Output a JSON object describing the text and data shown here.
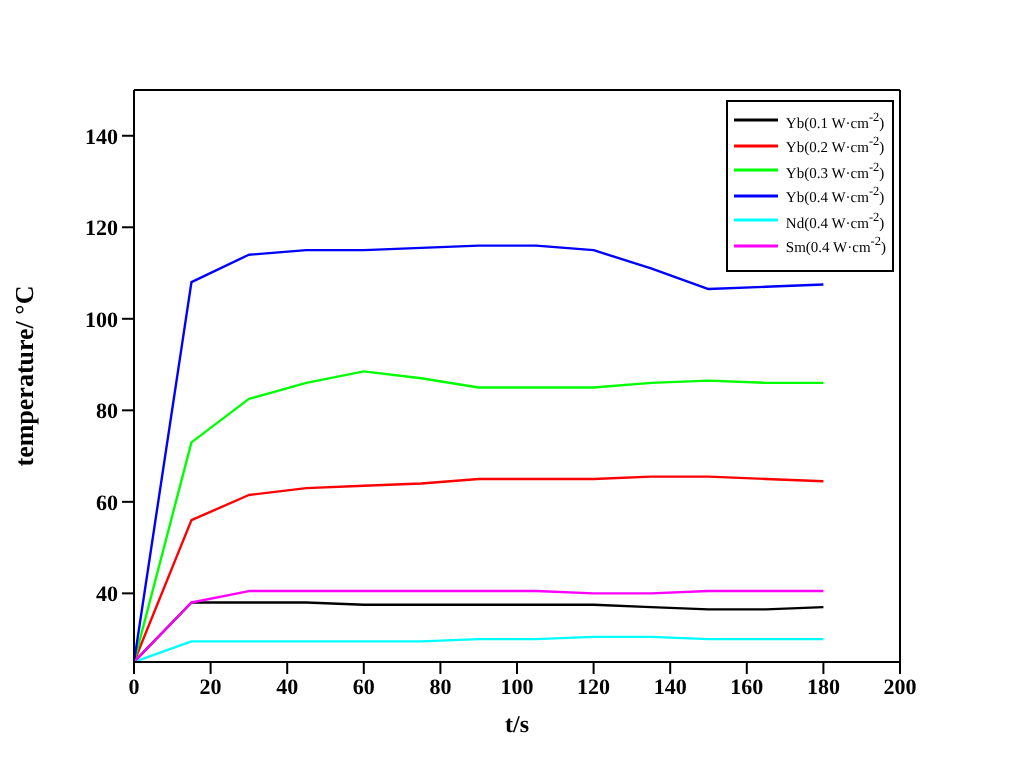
{
  "chart_data": {
    "type": "line",
    "xlabel": "t/s",
    "ylabel": "temperature/ °C",
    "x": [
      0,
      15,
      30,
      45,
      60,
      75,
      90,
      105,
      120,
      135,
      150,
      165,
      180
    ],
    "xlim": [
      0,
      200
    ],
    "xticks": [
      0,
      20,
      40,
      60,
      80,
      100,
      120,
      140,
      160,
      180,
      200
    ],
    "ylim": [
      25,
      150
    ],
    "yticks": [
      40,
      60,
      80,
      100,
      120,
      140
    ],
    "legend": "top right",
    "grid": false,
    "marker": "none",
    "line_style": "solid",
    "series": [
      {
        "name": "Yb(0.1 W·cm$^{-2}$)",
        "color": "#000000",
        "values": [
          25,
          38,
          38,
          38,
          37.5,
          37.5,
          37.5,
          37.5,
          37.5,
          37,
          36.5,
          36.5,
          37
        ]
      },
      {
        "name": "Yb(0.2 W·cm$^{-2}$)",
        "color": "#ff0000",
        "values": [
          25,
          56,
          61.5,
          63,
          63.5,
          64,
          65,
          65,
          65,
          65.5,
          65.5,
          65,
          64.5
        ]
      },
      {
        "name": "Yb(0.3 W·cm$^{-2}$)",
        "color": "#00ff00",
        "values": [
          25,
          73,
          82.5,
          86,
          88.5,
          87,
          85,
          85,
          85,
          86,
          86.5,
          86,
          86
        ]
      },
      {
        "name": "Yb(0.4 W·cm$^{-2}$)",
        "color": "#0000ff",
        "values": [
          25,
          108,
          114,
          115,
          115,
          115.5,
          116,
          116,
          115,
          111,
          106.5,
          107,
          107.5
        ]
      },
      {
        "name": "Nd(0.4 W·cm$^{-2}$)",
        "color": "#00ffff",
        "values": [
          25,
          29.5,
          29.5,
          29.5,
          29.5,
          29.5,
          30,
          30,
          30.5,
          30.5,
          30,
          30,
          30
        ]
      },
      {
        "name": "Sm(0.4 W·cm$^{-2}$)",
        "color": "#ff00ff",
        "values": [
          25,
          38,
          40.5,
          40.5,
          40.5,
          40.5,
          40.5,
          40.5,
          40,
          40,
          40.5,
          40.5,
          40.5
        ]
      }
    ]
  }
}
